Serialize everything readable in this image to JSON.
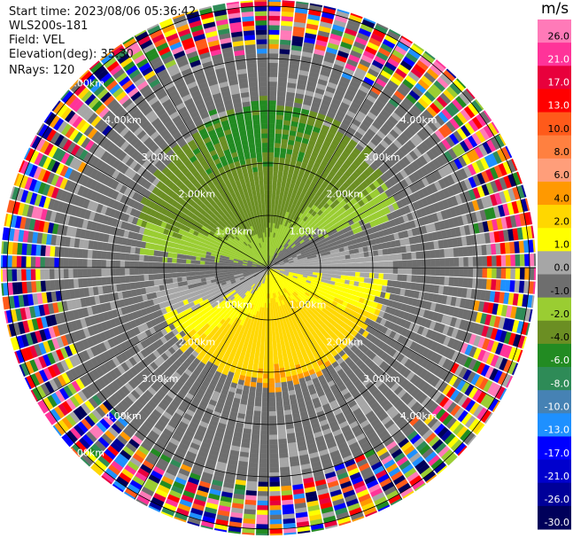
{
  "info": {
    "start_time": "Start time: 2023/08/06 05:36:42",
    "instrument": "WLS200s-181",
    "field": "Field: VEL",
    "elevation": "Elevation(deg): 35.30",
    "nrays": "NRays: 120"
  },
  "chart_data": {
    "type": "heatmap",
    "projection": "polar PPI",
    "range_rings_km": [
      1,
      2,
      3,
      4,
      5
    ],
    "range_labels": [
      "1.00km",
      "2.00km",
      "3.00km",
      "4.00km",
      "5.00km"
    ],
    "nrays": 120,
    "max_range_km": 5.3,
    "colorbar": {
      "unit": "m/s",
      "ticks": [
        "26.0",
        "21.0",
        "17.0",
        "13.0",
        "10.0",
        "8.0",
        "6.0",
        "4.0",
        "2.0",
        "1.0",
        "0.0",
        "-1.0",
        "-2.0",
        "-4.0",
        "-6.0",
        "-8.0",
        "-10.0",
        "-13.0",
        "-17.0",
        "-21.0",
        "-26.0",
        "-30.0"
      ],
      "colors": [
        "#ff7ab8",
        "#ff3399",
        "#e8003c",
        "#ff0000",
        "#ff5a1a",
        "#ff8040",
        "#ff9e7a",
        "#ff9900",
        "#ffd700",
        "#ffff00",
        "#a6a6a6",
        "#6e6e6e",
        "#9acd32",
        "#6b8e23",
        "#228b22",
        "#2e8b57",
        "#4682b4",
        "#1e90ff",
        "#0000ff",
        "#0000cd",
        "#000099",
        "#00005a"
      ]
    }
  }
}
